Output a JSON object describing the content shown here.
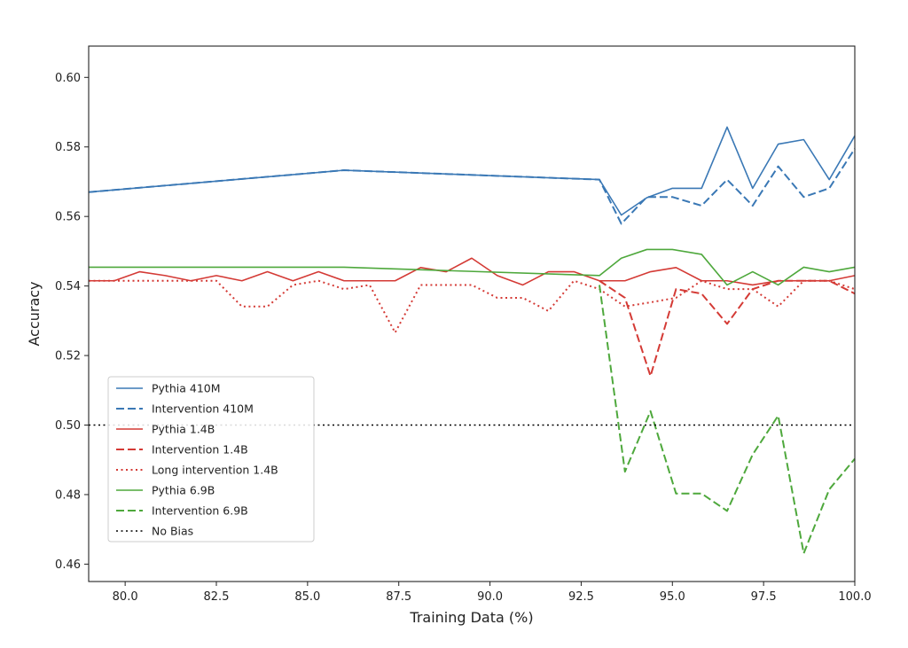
{
  "chart_data": {
    "type": "line",
    "title": "",
    "xlabel": "Training Data (%)",
    "ylabel": "Accuracy",
    "xlim": [
      79.0,
      100.0
    ],
    "ylim": [
      0.455,
      0.609
    ],
    "xticks": [
      80.0,
      82.5,
      85.0,
      87.5,
      90.0,
      92.5,
      95.0,
      97.5,
      100.0
    ],
    "xtick_labels": [
      "80.0",
      "82.5",
      "85.0",
      "87.5",
      "90.0",
      "92.5",
      "95.0",
      "97.5",
      "100.0"
    ],
    "yticks": [
      0.46,
      0.48,
      0.5,
      0.52,
      0.54,
      0.56,
      0.58,
      0.6
    ],
    "ytick_labels": [
      "0.46",
      "0.48",
      "0.50",
      "0.52",
      "0.54",
      "0.56",
      "0.58",
      "0.60"
    ],
    "grid": false,
    "legend_position": "lower-left",
    "series": [
      {
        "name": "Pythia 410M",
        "color": "#3a78b5",
        "style": "solid",
        "points": [
          [
            79.0,
            0.567
          ],
          [
            86.0,
            0.5733
          ],
          [
            93.0,
            0.5706
          ],
          [
            93.6,
            0.5604
          ],
          [
            94.3,
            0.5654
          ],
          [
            95.0,
            0.5681
          ],
          [
            95.8,
            0.5681
          ],
          [
            96.5,
            0.5857
          ],
          [
            97.2,
            0.5681
          ],
          [
            97.9,
            0.5808
          ],
          [
            98.6,
            0.5821
          ],
          [
            99.3,
            0.5706
          ],
          [
            100.0,
            0.5832
          ]
        ]
      },
      {
        "name": "Intervention 410M",
        "color": "#3a78b5",
        "style": "dashed",
        "points": [
          [
            79.0,
            0.567
          ],
          [
            86.0,
            0.5733
          ],
          [
            93.0,
            0.5706
          ],
          [
            93.6,
            0.5579
          ],
          [
            94.3,
            0.5656
          ],
          [
            95.0,
            0.5656
          ],
          [
            95.8,
            0.5631
          ],
          [
            96.5,
            0.5706
          ],
          [
            97.2,
            0.5631
          ],
          [
            97.9,
            0.5744
          ],
          [
            98.6,
            0.5656
          ],
          [
            99.3,
            0.5681
          ],
          [
            100.0,
            0.5795
          ]
        ]
      },
      {
        "name": "Pythia 1.4B",
        "color": "#d43a35",
        "style": "solid",
        "points": [
          [
            79.0,
            0.5415
          ],
          [
            79.7,
            0.5415
          ],
          [
            80.4,
            0.5441
          ],
          [
            81.1,
            0.543
          ],
          [
            81.8,
            0.5415
          ],
          [
            82.5,
            0.543
          ],
          [
            83.2,
            0.5415
          ],
          [
            83.9,
            0.5441
          ],
          [
            84.6,
            0.5415
          ],
          [
            85.3,
            0.5441
          ],
          [
            86.0,
            0.5415
          ],
          [
            86.7,
            0.5415
          ],
          [
            87.4,
            0.5415
          ],
          [
            88.1,
            0.5453
          ],
          [
            88.8,
            0.5441
          ],
          [
            89.5,
            0.548
          ],
          [
            90.2,
            0.543
          ],
          [
            90.9,
            0.5403
          ],
          [
            91.6,
            0.5441
          ],
          [
            92.3,
            0.5441
          ],
          [
            93.0,
            0.5415
          ],
          [
            93.7,
            0.5415
          ],
          [
            94.4,
            0.5441
          ],
          [
            95.1,
            0.5453
          ],
          [
            95.8,
            0.5415
          ],
          [
            96.5,
            0.5415
          ],
          [
            97.2,
            0.5403
          ],
          [
            97.9,
            0.5415
          ],
          [
            98.6,
            0.5415
          ],
          [
            99.3,
            0.5415
          ],
          [
            100.0,
            0.543
          ]
        ]
      },
      {
        "name": "Intervention 1.4B",
        "color": "#d43a35",
        "style": "dashed",
        "points": [
          [
            93.0,
            0.5415
          ],
          [
            93.7,
            0.5366
          ],
          [
            94.4,
            0.5141
          ],
          [
            95.1,
            0.5391
          ],
          [
            95.8,
            0.5378
          ],
          [
            96.5,
            0.5291
          ],
          [
            97.2,
            0.5391
          ],
          [
            97.9,
            0.5415
          ],
          [
            98.6,
            0.5415
          ],
          [
            99.3,
            0.5415
          ],
          [
            100.0,
            0.5378
          ]
        ]
      },
      {
        "name": "Long intervention 1.4B",
        "color": "#d43a35",
        "style": "dotted",
        "points": [
          [
            79.0,
            0.5415
          ],
          [
            82.0,
            0.5415
          ],
          [
            82.5,
            0.5415
          ],
          [
            83.2,
            0.5341
          ],
          [
            83.9,
            0.5341
          ],
          [
            84.6,
            0.5403
          ],
          [
            85.3,
            0.5415
          ],
          [
            86.0,
            0.5391
          ],
          [
            86.7,
            0.5403
          ],
          [
            87.4,
            0.5266
          ],
          [
            88.1,
            0.5403
          ],
          [
            88.8,
            0.5403
          ],
          [
            89.5,
            0.5403
          ],
          [
            90.2,
            0.5366
          ],
          [
            90.9,
            0.5366
          ],
          [
            91.6,
            0.5328
          ],
          [
            92.3,
            0.5415
          ],
          [
            93.0,
            0.5391
          ],
          [
            93.7,
            0.5341
          ],
          [
            94.4,
            0.5353
          ],
          [
            95.1,
            0.5366
          ],
          [
            95.8,
            0.5415
          ],
          [
            96.5,
            0.5391
          ],
          [
            97.2,
            0.5391
          ],
          [
            97.9,
            0.5341
          ],
          [
            98.6,
            0.5415
          ],
          [
            99.3,
            0.5415
          ],
          [
            100.0,
            0.5391
          ]
        ]
      },
      {
        "name": "Pythia 6.9B",
        "color": "#4ea83c",
        "style": "solid",
        "points": [
          [
            79.0,
            0.5454
          ],
          [
            86.0,
            0.5454
          ],
          [
            93.0,
            0.543
          ],
          [
            93.6,
            0.548
          ],
          [
            94.3,
            0.5505
          ],
          [
            95.0,
            0.5505
          ],
          [
            95.8,
            0.5491
          ],
          [
            96.5,
            0.5403
          ],
          [
            97.2,
            0.5441
          ],
          [
            97.9,
            0.5403
          ],
          [
            98.6,
            0.5454
          ],
          [
            99.3,
            0.5441
          ],
          [
            100.0,
            0.5454
          ]
        ]
      },
      {
        "name": "Intervention 6.9B",
        "color": "#4ea83c",
        "style": "dashed",
        "points": [
          [
            93.0,
            0.5403
          ],
          [
            93.7,
            0.4866
          ],
          [
            94.4,
            0.504
          ],
          [
            95.1,
            0.4803
          ],
          [
            95.8,
            0.4803
          ],
          [
            96.5,
            0.4753
          ],
          [
            97.2,
            0.4915
          ],
          [
            97.9,
            0.5027
          ],
          [
            98.6,
            0.4631
          ],
          [
            99.3,
            0.4815
          ],
          [
            100.0,
            0.4903
          ]
        ]
      },
      {
        "name": "No Bias",
        "color": "#000000",
        "style": "dotted",
        "points": [
          [
            79.0,
            0.5
          ],
          [
            100.0,
            0.5
          ]
        ]
      }
    ]
  }
}
